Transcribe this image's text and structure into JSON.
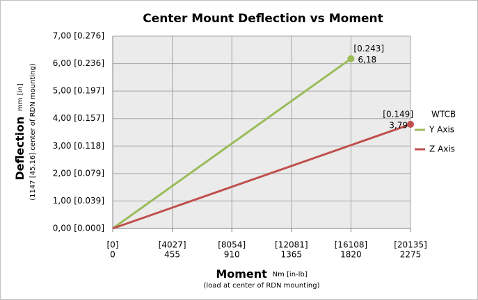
{
  "chart_data": {
    "type": "line",
    "title": "Center Mount Deflection vs Moment",
    "y_label": "Deflection",
    "y_unit": "mm [in]",
    "y_note": "(1147 [45.16] center of RDN mounting)",
    "x_label": "Moment",
    "x_unit": "Nm [in-lb]",
    "x_note": "(load at center of RDN mounting)",
    "xlim": [
      0,
      2275
    ],
    "ylim": [
      0,
      7
    ],
    "xticks": [
      0,
      455,
      910,
      1365,
      1820,
      2275
    ],
    "xtick_secondary_labels": [
      "[0]",
      "[4027]",
      "[8054]",
      "[12081]",
      "[16108]",
      "[20135]"
    ],
    "yticks": [
      {
        "value": 0,
        "label": "0,00 [0.000]"
      },
      {
        "value": 1,
        "label": "1,00 [0.039]"
      },
      {
        "value": 2,
        "label": "2,00 [0.079]"
      },
      {
        "value": 3,
        "label": "3,00 [0.118]"
      },
      {
        "value": 4,
        "label": "4,00 [0.157]"
      },
      {
        "value": 5,
        "label": "5,00 [0.197]"
      },
      {
        "value": 6,
        "label": "6,00 [0.236]"
      },
      {
        "value": 7,
        "label": "7,00 [0.276]"
      }
    ],
    "grid": true,
    "legend_title": "WTCB",
    "legend": "right",
    "series": [
      {
        "name": "Y Axis",
        "color": "#9bbb59",
        "x": [
          0,
          1820
        ],
        "values": [
          0,
          6.18
        ],
        "value_labels": [
          null,
          "6,18"
        ],
        "value_labels_secondary": [
          null,
          "[0.243]"
        ]
      },
      {
        "name": "Z Axis",
        "color": "#c0504d",
        "x": [
          0,
          2275
        ],
        "values": [
          0,
          3.79
        ],
        "value_labels": [
          null,
          "3,79"
        ],
        "value_labels_secondary": [
          null,
          "[0.149]"
        ]
      }
    ]
  }
}
